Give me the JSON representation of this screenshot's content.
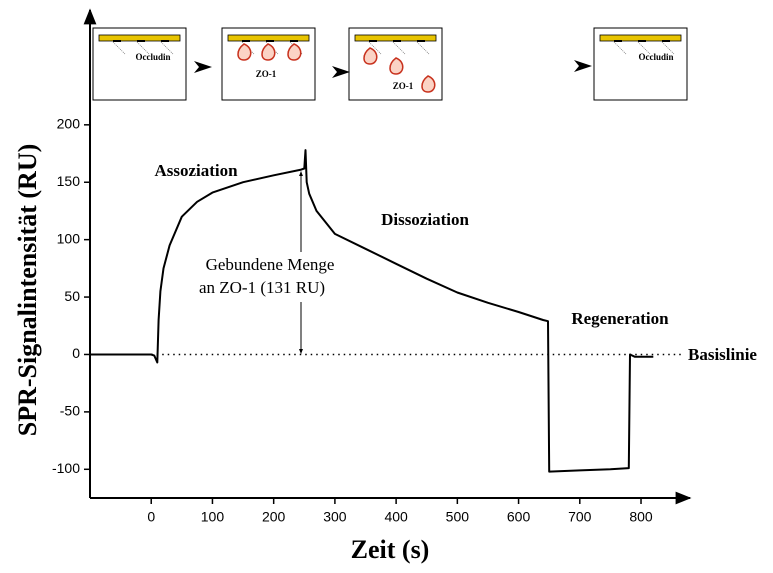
{
  "chart_data": {
    "type": "line",
    "x_label": "Zeit (s)",
    "y_label": "SPR-Signalintensität (RU)",
    "x": [
      -100,
      0,
      5,
      10,
      12,
      15,
      20,
      30,
      50,
      75,
      100,
      150,
      200,
      245,
      250,
      252,
      254,
      258,
      270,
      300,
      350,
      400,
      450,
      500,
      550,
      600,
      640,
      648,
      650,
      700,
      750,
      780,
      782,
      790,
      800,
      820
    ],
    "values": [
      0,
      0,
      -1,
      -7,
      30,
      55,
      75,
      95,
      120,
      133,
      141,
      150,
      156,
      161,
      162,
      178,
      150,
      140,
      125,
      105,
      92,
      79,
      66,
      54,
      45,
      37,
      30,
      29,
      -102,
      -101,
      -100,
      -99,
      0,
      -2,
      -2,
      -2
    ],
    "color": "#000000",
    "xlim": [
      -100,
      880
    ],
    "xticks": [
      0,
      100,
      200,
      300,
      400,
      500,
      600,
      700,
      800
    ],
    "ylim": [
      -125,
      300
    ],
    "yticks": [
      -100,
      -50,
      0,
      50,
      100,
      150,
      200
    ],
    "annotations": [
      "Assoziation",
      "Dissoziation",
      "Regeneration",
      "Basislinie",
      "Gebundene Menge",
      "an ZO-1 (131 RU)"
    ],
    "schematic_labels": [
      "Occludin",
      "ZO-1",
      "ZO-1",
      "Occludin"
    ]
  }
}
